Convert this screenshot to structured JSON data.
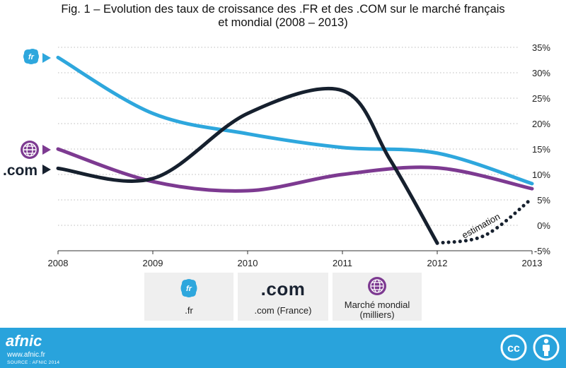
{
  "title_line1": "Fig. 1 – Evolution des taux de croissance des .FR et des .COM sur le marché français",
  "title_line2": "et mondial (2008 – 2013)",
  "chart_data": {
    "type": "line",
    "x": [
      2008,
      2009,
      2010,
      2011,
      2012,
      2013
    ],
    "xticks": [
      "2008",
      "2009",
      "2010",
      "2011",
      "2012",
      "2013"
    ],
    "ylim": [
      -5,
      35
    ],
    "yticks": [
      "35%",
      "30%",
      "25%",
      "20%",
      "15%",
      "10%",
      "5%",
      "0%",
      "-5%"
    ],
    "grid": "y-dotted",
    "series": [
      {
        "name": ".fr",
        "color": "#2ea7dd",
        "points": [
          [
            2008,
            33
          ],
          [
            2009,
            22
          ],
          [
            2010,
            18
          ],
          [
            2011,
            15.3
          ],
          [
            2012,
            14.2
          ],
          [
            2013,
            8.2
          ]
        ]
      },
      {
        "name": ".com (France)",
        "color": "#16202e",
        "points": [
          [
            2008,
            11.2
          ],
          [
            2009,
            9.2
          ],
          [
            2010,
            22
          ],
          [
            2011,
            26.5
          ],
          [
            2011.5,
            13
          ],
          [
            2012,
            -3.5
          ]
        ],
        "estimation_points": [
          [
            2012,
            -3.5
          ],
          [
            2012.5,
            -2
          ],
          [
            2013,
            5.3
          ]
        ]
      },
      {
        "name": "Marché mondial (milliers)",
        "color": "#7d3a91",
        "points": [
          [
            2008,
            15
          ],
          [
            2009,
            8.6
          ],
          [
            2010,
            6.8
          ],
          [
            2011,
            10
          ],
          [
            2012,
            11.3
          ],
          [
            2013,
            7.2
          ]
        ]
      }
    ],
    "annotation": "estimation",
    "left_markers": [
      ".fr",
      ".com",
      "monde"
    ]
  },
  "legend": {
    "fr_label": ".fr",
    "com_logo": ".com",
    "com_label": ".com (France)",
    "world_label_1": "Marché mondial",
    "world_label_2": "(milliers)"
  },
  "markers": {
    "com_text": ".com",
    "fr_icon_text": "fr"
  },
  "footer": {
    "brand": "afnic",
    "url": "www.afnic.fr",
    "source": "SOURCE : AFNIC 2014",
    "cc_text": "cc"
  },
  "colors": {
    "fr": "#2ea7dd",
    "com": "#16202e",
    "world": "#7d3a91",
    "footer": "#29a3dc"
  }
}
